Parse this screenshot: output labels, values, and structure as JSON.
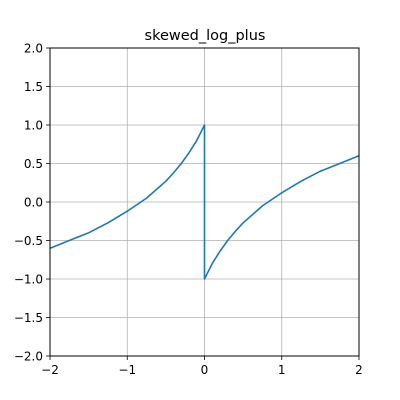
{
  "chart_data": {
    "type": "line",
    "title": "skewed_log_plus",
    "xlabel": "",
    "ylabel": "",
    "xlim": [
      -2,
      2
    ],
    "ylim": [
      -2,
      2
    ],
    "grid": true,
    "x_ticks": [
      -2,
      -1,
      0,
      1,
      2
    ],
    "y_ticks": [
      -2.0,
      -1.5,
      -1.0,
      -0.5,
      0.0,
      0.5,
      1.0,
      1.5,
      2.0
    ],
    "x_tick_labels": [
      "−2",
      "−1",
      "0",
      "1",
      "2"
    ],
    "y_tick_labels": [
      "−2.0",
      "−1.5",
      "−1.0",
      "−0.5",
      "0.0",
      "0.5",
      "1.0",
      "1.5",
      "2.0"
    ],
    "series": [
      {
        "color": "#1f77b4",
        "x": [
          -2.0,
          -1.75,
          -1.5,
          -1.25,
          -1.0,
          -0.75,
          -0.5,
          -0.4,
          -0.3,
          -0.2,
          -0.1,
          -0.05,
          0.0,
          0.0,
          0.05,
          0.1,
          0.2,
          0.3,
          0.4,
          0.5,
          0.75,
          1.0,
          1.25,
          1.5,
          1.75,
          2.0
        ],
        "y": [
          -0.6,
          -0.5,
          -0.4,
          -0.27,
          -0.12,
          0.05,
          0.27,
          0.38,
          0.5,
          0.64,
          0.8,
          0.9,
          1.0,
          -1.0,
          -0.9,
          -0.8,
          -0.64,
          -0.5,
          -0.38,
          -0.27,
          -0.05,
          0.12,
          0.27,
          0.4,
          0.5,
          0.6
        ]
      }
    ]
  },
  "colors": {
    "line": "#1f77b4",
    "grid": "#b0b0b0",
    "axes": "#000000"
  }
}
